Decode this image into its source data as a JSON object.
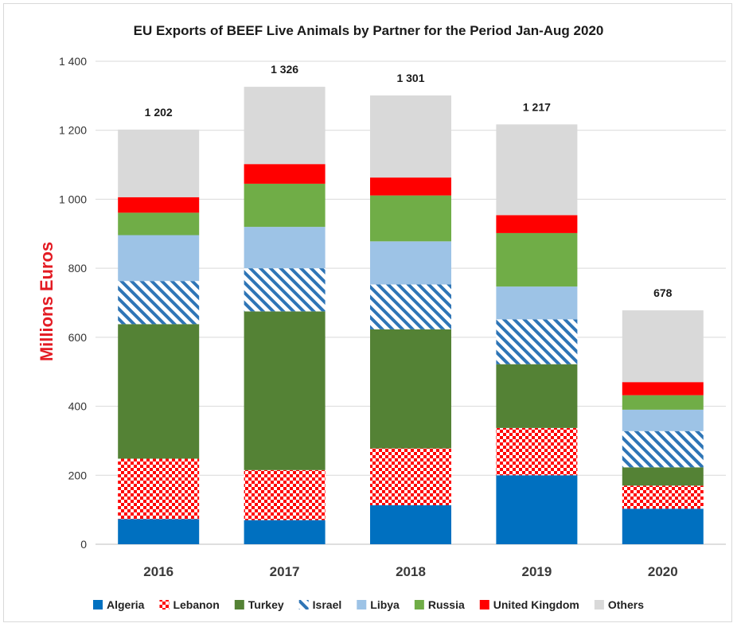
{
  "chart_data": {
    "type": "bar",
    "stacked": true,
    "title": "EU Exports of BEEF Live Animals by Partner for the Period Jan-Aug 2020",
    "xlabel": "",
    "ylabel": "Millions Euros",
    "ylim": [
      0,
      1400
    ],
    "yticks": [
      0,
      200,
      400,
      600,
      800,
      1000,
      1200,
      1400
    ],
    "ytick_labels": [
      "0",
      "200",
      "400",
      "600",
      "800",
      "1 000",
      "1 200",
      "1 400"
    ],
    "grid": true,
    "legend_position": "bottom",
    "categories": [
      "2016",
      "2017",
      "2018",
      "2019",
      "2020"
    ],
    "totals": [
      1202,
      1326,
      1301,
      1217,
      678
    ],
    "total_labels": [
      "1 202",
      "1 326",
      "1 301",
      "1 217",
      "678"
    ],
    "series": [
      {
        "name": "Algeria",
        "pattern": "solid",
        "color": "#0070C0",
        "values": [
          73,
          70,
          113,
          200,
          103
        ]
      },
      {
        "name": "Lebanon",
        "pattern": "checker",
        "color": "#FF0000",
        "values": [
          175,
          145,
          165,
          137,
          67
        ]
      },
      {
        "name": "Turkey",
        "pattern": "solid",
        "color": "#548235",
        "values": [
          390,
          460,
          345,
          185,
          53
        ]
      },
      {
        "name": "Israel",
        "pattern": "diagonal",
        "color": "#2E75B6",
        "values": [
          125,
          125,
          130,
          130,
          105
        ]
      },
      {
        "name": "Libya",
        "pattern": "solid",
        "color": "#9DC3E6",
        "values": [
          133,
          120,
          125,
          95,
          62
        ]
      },
      {
        "name": "Russia",
        "pattern": "solid",
        "color": "#70AD47",
        "values": [
          65,
          125,
          133,
          155,
          42
        ]
      },
      {
        "name": "United Kingdom",
        "pattern": "solid",
        "color": "#FF0000",
        "values": [
          45,
          57,
          52,
          52,
          38
        ]
      },
      {
        "name": "Others",
        "pattern": "solid",
        "color": "#D9D9D9",
        "values": [
          196,
          224,
          238,
          263,
          208
        ]
      }
    ],
    "ylabel_color": "#E31B23",
    "grid_color": "#D9D9D9"
  }
}
